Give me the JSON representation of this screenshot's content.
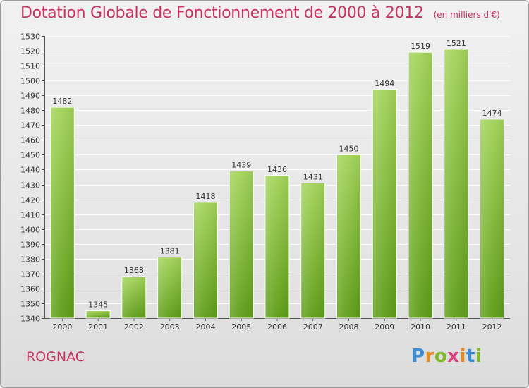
{
  "header": {
    "title": "Dotation Globale de Fonctionnement de 2000 à 2012",
    "subtitle": "(en milliers d'€)"
  },
  "footer": {
    "location": "ROGNAC",
    "brand": "Proxiti"
  },
  "colors": {
    "title": "#c8325f",
    "bar_light": "#a3d45a",
    "bar_dark": "#5e9d17"
  },
  "chart_data": {
    "type": "bar",
    "title": "Dotation Globale de Fonctionnement de 2000 à 2012",
    "subtitle": "(en milliers d'€)",
    "xlabel": "",
    "ylabel": "",
    "categories": [
      "2000",
      "2001",
      "2002",
      "2003",
      "2004",
      "2005",
      "2006",
      "2007",
      "2008",
      "2009",
      "2010",
      "2011",
      "2012"
    ],
    "values": [
      1482,
      1345,
      1368,
      1381,
      1418,
      1439,
      1436,
      1431,
      1450,
      1494,
      1519,
      1521,
      1474
    ],
    "ylim": [
      1340,
      1530
    ],
    "ytick_step": 10,
    "grid": true,
    "legend": "none"
  }
}
